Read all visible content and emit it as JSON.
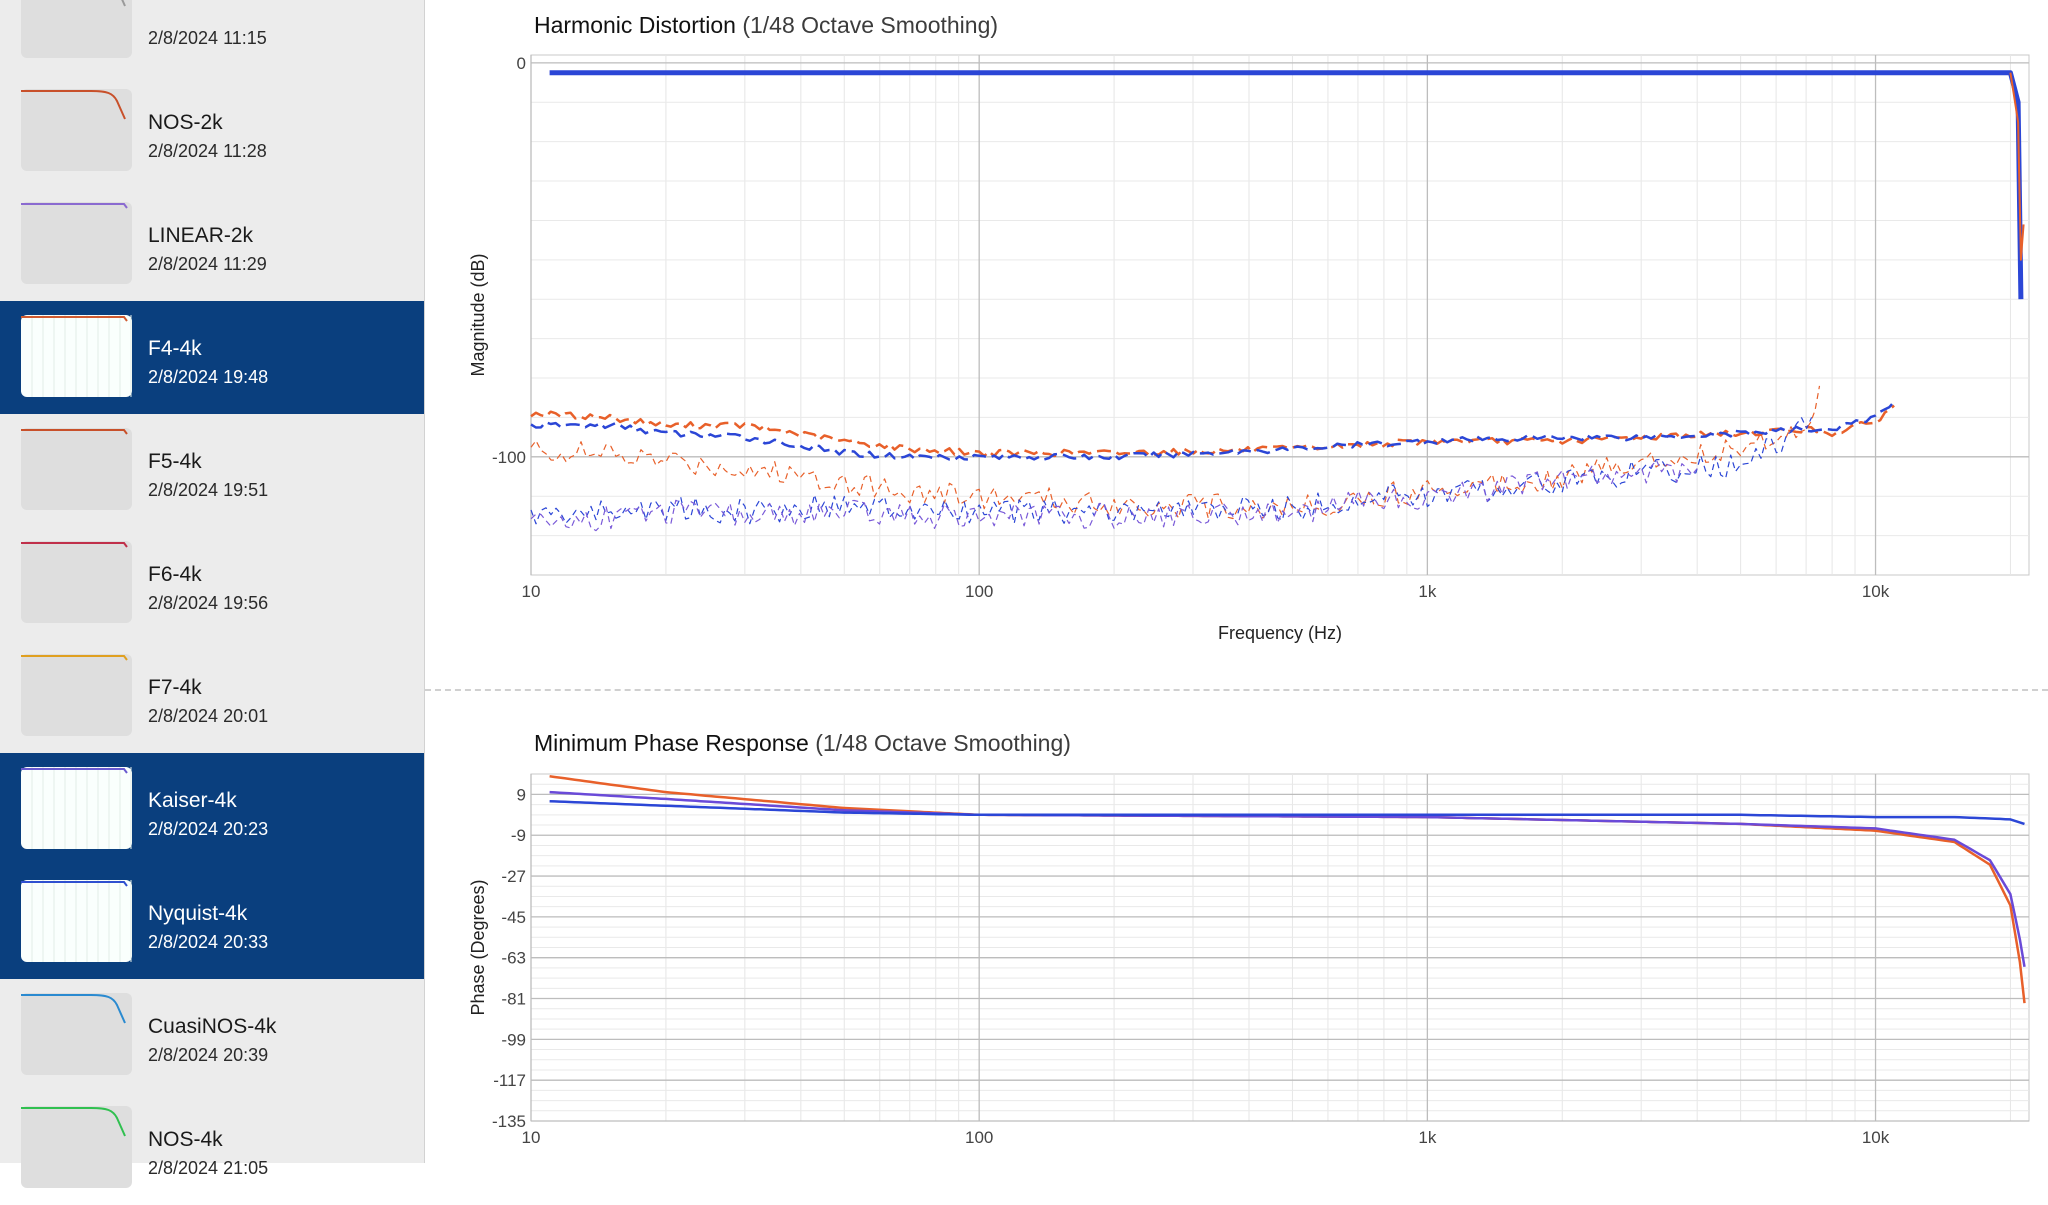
{
  "sidebar": {
    "items": [
      {
        "name": "",
        "date": "2/8/2024 11:15",
        "selected": false,
        "thumb_color": "#9a9a9a",
        "thumb_shape": "rolloff"
      },
      {
        "name": "NOS-2k",
        "date": "2/8/2024 11:28",
        "selected": false,
        "thumb_color": "#c8502a",
        "thumb_shape": "rolloff"
      },
      {
        "name": "LINEAR-2k",
        "date": "2/8/2024 11:29",
        "selected": false,
        "thumb_color": "#8a6ad0",
        "thumb_shape": "flat"
      },
      {
        "name": "F4-4k",
        "date": "2/8/2024 19:48",
        "selected": true,
        "thumb_color": "#d05a30",
        "thumb_shape": "flat"
      },
      {
        "name": "F5-4k",
        "date": "2/8/2024 19:51",
        "selected": false,
        "thumb_color": "#c8502a",
        "thumb_shape": "flat"
      },
      {
        "name": "F6-4k",
        "date": "2/8/2024 19:56",
        "selected": false,
        "thumb_color": "#c0304a",
        "thumb_shape": "flat"
      },
      {
        "name": "F7-4k",
        "date": "2/8/2024 20:01",
        "selected": false,
        "thumb_color": "#e0a020",
        "thumb_shape": "flat"
      },
      {
        "name": "Kaiser-4k",
        "date": "2/8/2024 20:23",
        "selected": true,
        "thumb_color": "#6a5ad0",
        "thumb_shape": "flat"
      },
      {
        "name": "Nyquist-4k",
        "date": "2/8/2024 20:33",
        "selected": true,
        "thumb_color": "#3050d0",
        "thumb_shape": "flat"
      },
      {
        "name": "CuasiNOS-4k",
        "date": "2/8/2024 20:39",
        "selected": false,
        "thumb_color": "#2a8ad0",
        "thumb_shape": "rolloff"
      },
      {
        "name": "NOS-4k",
        "date": "2/8/2024 21:05",
        "selected": false,
        "thumb_color": "#30c050",
        "thumb_shape": "rolloff"
      }
    ]
  },
  "charts": {
    "hd": {
      "title": "Harmonic Distortion",
      "subtitle": "(1/48 Octave Smoothing)"
    },
    "phase": {
      "title": "Minimum Phase Response",
      "subtitle": "(1/48 Octave Smoothing)"
    }
  },
  "chart_data": [
    {
      "type": "line",
      "title": "Harmonic Distortion (1/48 Octave Smoothing)",
      "xlabel": "Frequency (Hz)",
      "ylabel": "Magnitude (dB)",
      "x_scale": "log",
      "xlim": [
        10,
        22000
      ],
      "ylim": [
        -130,
        2
      ],
      "x_ticks": [
        10,
        100,
        1000,
        10000
      ],
      "x_tick_labels": [
        "10",
        "100",
        "1k",
        "10k"
      ],
      "y_ticks": [
        0,
        -100
      ],
      "y_tick_labels": [
        "0",
        "-100"
      ],
      "grid": true,
      "series": [
        {
          "color": "#2b46d6",
          "style": "solid",
          "width": 5,
          "x": [
            11,
            100,
            1000,
            10000,
            20000,
            20800,
            21100
          ],
          "y": [
            -2.5,
            -2.5,
            -2.5,
            -2.5,
            -2.5,
            -10,
            -60
          ]
        },
        {
          "color": "#e8602a",
          "style": "solid",
          "width": 2,
          "x": [
            20000,
            20800,
            21100,
            21400
          ],
          "y": [
            -2.5,
            -15,
            -50,
            -41
          ]
        },
        {
          "color": "#e8602a",
          "style": "dashed",
          "width": 2.5,
          "x": [
            10,
            15,
            20,
            30,
            50,
            70,
            100,
            200,
            500,
            1000,
            2000,
            3000,
            5000,
            7000,
            8000,
            10000,
            11000
          ],
          "y": [
            -89,
            -90,
            -92,
            -92,
            -96,
            -98,
            -99,
            -99,
            -98,
            -96,
            -96,
            -95,
            -94,
            -93,
            -94,
            -91,
            -87
          ]
        },
        {
          "color": "#2b46d6",
          "style": "dashed",
          "width": 2.5,
          "x": [
            10,
            15,
            20,
            30,
            50,
            70,
            100,
            200,
            500,
            1000,
            2000,
            3000,
            5000,
            7000,
            8000,
            10000,
            11000
          ],
          "y": [
            -92,
            -92,
            -94,
            -95,
            -99,
            -100,
            -100,
            -100,
            -98,
            -96,
            -95,
            -95,
            -94,
            -93,
            -93,
            -90,
            -86
          ]
        },
        {
          "color": "#e8602a",
          "style": "dashed",
          "width": 1.2,
          "x": [
            10,
            20,
            30,
            50,
            70,
            100,
            200,
            500,
            800,
            1000,
            2000,
            3000,
            5000,
            7000,
            7500
          ],
          "y": [
            -98,
            -101,
            -103,
            -106,
            -109,
            -110,
            -112,
            -113,
            -110,
            -108,
            -105,
            -101,
            -98,
            -92,
            -82
          ]
        },
        {
          "color": "#2b46d6",
          "style": "dashed",
          "width": 1.2,
          "x": [
            10,
            20,
            30,
            50,
            70,
            100,
            200,
            500,
            800,
            1000,
            2000,
            3000,
            5000,
            6500,
            7200
          ],
          "y": [
            -115,
            -113,
            -114,
            -112,
            -114,
            -114,
            -114,
            -113,
            -110,
            -110,
            -106,
            -104,
            -102,
            -95,
            -90
          ]
        },
        {
          "color": "#7a5ad8",
          "style": "dashed",
          "width": 1.2,
          "x": [
            10,
            20,
            30,
            50,
            70,
            100,
            200,
            500,
            800,
            1000,
            2000,
            3000,
            4000
          ],
          "y": [
            -117,
            -114,
            -115,
            -114,
            -115,
            -115,
            -115,
            -114,
            -111,
            -110,
            -106,
            -104,
            -103
          ]
        }
      ]
    },
    {
      "type": "line",
      "title": "Minimum Phase Response (1/48 Octave Smoothing)",
      "xlabel": "",
      "ylabel": "Phase (Degrees)",
      "x_scale": "log",
      "xlim": [
        10,
        22000
      ],
      "ylim": [
        -135,
        18
      ],
      "x_ticks": [
        10,
        100,
        1000,
        10000
      ],
      "x_tick_labels": [
        "10",
        "100",
        "1k",
        "10k"
      ],
      "y_ticks": [
        9,
        -9,
        -27,
        -45,
        -63,
        -81,
        -99,
        -117,
        -135
      ],
      "y_tick_labels": [
        "9",
        "-9",
        "-27",
        "-45",
        "-63",
        "-81",
        "-99",
        "-117",
        "-135"
      ],
      "grid": true,
      "series": [
        {
          "color": "#e8602a",
          "style": "solid",
          "width": 2.5,
          "x": [
            11,
            20,
            50,
            100,
            1000,
            5000,
            10000,
            15000,
            18000,
            20000,
            21000,
            21500
          ],
          "y": [
            17,
            10,
            3,
            0,
            -1,
            -4,
            -7,
            -12,
            -22,
            -40,
            -65,
            -83
          ]
        },
        {
          "color": "#6a4ad8",
          "style": "solid",
          "width": 2.5,
          "x": [
            11,
            20,
            50,
            100,
            1000,
            5000,
            10000,
            15000,
            18000,
            20000,
            21000,
            21500
          ],
          "y": [
            10,
            7,
            2,
            0,
            -1,
            -4,
            -6,
            -11,
            -20,
            -35,
            -55,
            -67
          ]
        },
        {
          "color": "#2b46d6",
          "style": "solid",
          "width": 2.5,
          "x": [
            11,
            20,
            50,
            100,
            1000,
            5000,
            10000,
            15000,
            20000,
            21500
          ],
          "y": [
            6,
            4,
            1,
            0,
            0,
            0,
            -1,
            -1,
            -2,
            -4
          ]
        }
      ]
    }
  ]
}
